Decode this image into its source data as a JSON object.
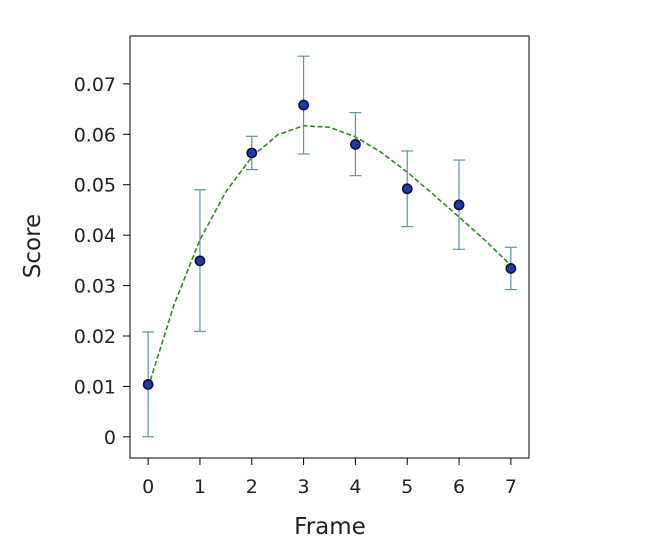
{
  "chart_data": {
    "type": "scatter",
    "xlabel": "Frame",
    "ylabel": "Score",
    "xlim": [
      -0.35,
      7.35
    ],
    "ylim": [
      -0.0042,
      0.0795
    ],
    "x_ticks": [
      0,
      1,
      2,
      3,
      4,
      5,
      6,
      7
    ],
    "y_ticks": [
      0,
      0.01,
      0.02,
      0.03,
      0.04,
      0.05,
      0.06,
      0.07
    ],
    "y_tick_labels": [
      "0",
      "0.01",
      "0.02",
      "0.03",
      "0.04",
      "0.05",
      "0.06",
      "0.07"
    ],
    "grid": false,
    "legend": "none",
    "series": [
      {
        "type": "scatter-errorbar",
        "x": [
          0,
          1,
          2,
          3,
          4,
          5,
          6,
          7
        ],
        "y": [
          0.0104,
          0.0349,
          0.0563,
          0.0658,
          0.058,
          0.0492,
          0.046,
          0.0334
        ],
        "err_low": [
          0.0104,
          0.014,
          0.0033,
          0.0097,
          0.0062,
          0.0075,
          0.0088,
          0.0042
        ],
        "err_high": [
          0.0104,
          0.0141,
          0.0033,
          0.0097,
          0.0063,
          0.0075,
          0.0089,
          0.0042
        ],
        "marker_color": "#1f3aa8",
        "marker_edge_color": "#0a0f3c",
        "errorbar_color": "#5b93aa"
      },
      {
        "type": "fit-line",
        "style": "dashed",
        "color": "#2e8b1e",
        "x": [
          0,
          0.5,
          1,
          1.5,
          2,
          2.5,
          3,
          3.5,
          4,
          4.5,
          5,
          5.5,
          6,
          6.5,
          7
        ],
        "y": [
          0.0098,
          0.0262,
          0.0391,
          0.0486,
          0.0555,
          0.0599,
          0.0617,
          0.0614,
          0.0595,
          0.0564,
          0.0525,
          0.0481,
          0.0436,
          0.039,
          0.034
        ]
      }
    ]
  }
}
